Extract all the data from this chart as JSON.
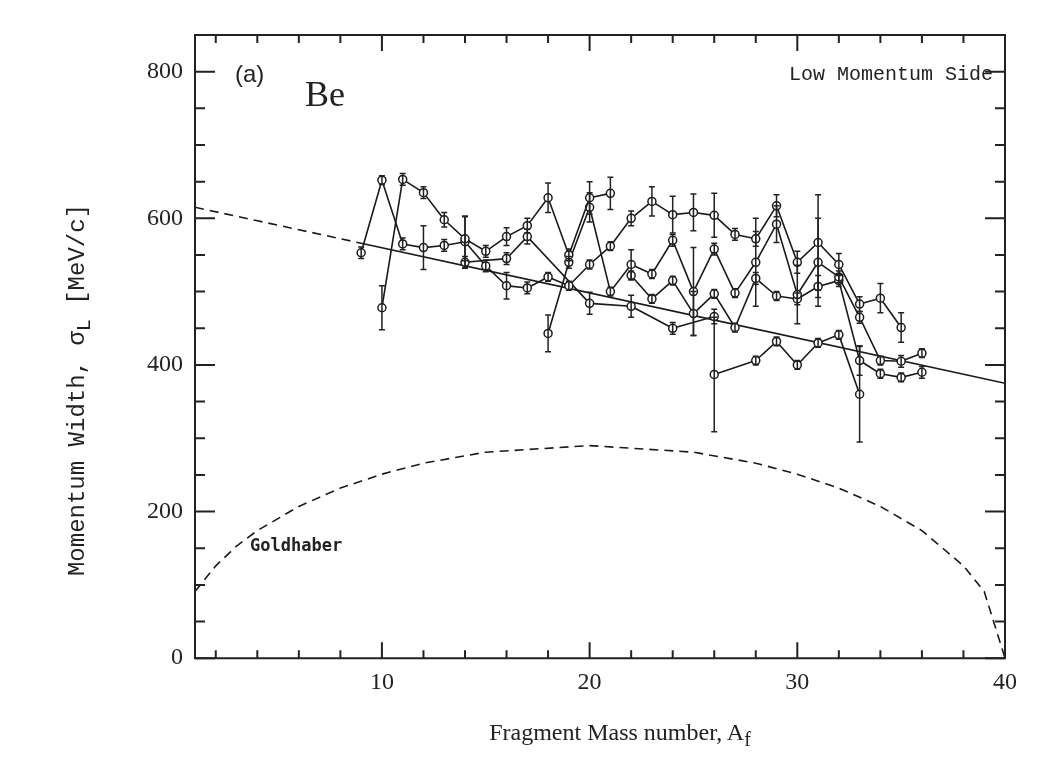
{
  "chart_data": {
    "type": "line",
    "xlabel": "Fragment Mass number, A$_{f}$",
    "ylabel": "Momentum Width, σ$_{L}$ [MeV/c]",
    "annotations": [
      "(a)",
      "Be",
      "Low Momentum Side",
      "Goldhaber"
    ],
    "xlim": [
      1,
      40
    ],
    "xticks": [
      {
        "value": 2,
        "label": null
      },
      {
        "value": 4,
        "label": null
      },
      {
        "value": 6,
        "label": null
      },
      {
        "value": 8,
        "label": null
      },
      10,
      {
        "value": 12,
        "label": null
      },
      {
        "value": 14,
        "label": null
      },
      {
        "value": 16,
        "label": null
      },
      {
        "value": 18,
        "label": null
      },
      20,
      {
        "value": 22,
        "label": null
      },
      {
        "value": 24,
        "label": null
      },
      {
        "value": 26,
        "label": null
      },
      {
        "value": 28,
        "label": null
      },
      30,
      {
        "value": 32,
        "label": null
      },
      {
        "value": 34,
        "label": null
      },
      {
        "value": 36,
        "label": null
      },
      {
        "value": 38,
        "label": null
      },
      40
    ],
    "ylim": [
      0,
      850
    ],
    "yticks": [
      0,
      {
        "value": 50,
        "label": null
      },
      {
        "value": 100,
        "label": null
      },
      {
        "value": 150,
        "label": null
      },
      200,
      {
        "value": 250,
        "label": null
      },
      {
        "value": 300,
        "label": null
      },
      {
        "value": 350,
        "label": null
      },
      400,
      {
        "value": 450,
        "label": null
      },
      {
        "value": 500,
        "label": null
      },
      {
        "value": 550,
        "label": null
      },
      600,
      {
        "value": 650,
        "label": null
      },
      {
        "value": 700,
        "label": null
      },
      {
        "value": 750,
        "label": null
      },
      800
    ],
    "grid": false,
    "legend": false,
    "marker": "circle",
    "series": [
      {
        "color": "#1a1a1a",
        "x": [
          10,
          11,
          12,
          13,
          14,
          15,
          16,
          17,
          18,
          19,
          20,
          21
        ],
        "values": [
          478,
          653,
          635,
          598,
          572,
          555,
          575,
          590,
          628,
          550,
          628,
          634
        ],
        "errors": [
          30,
          8,
          8,
          10,
          30,
          8,
          12,
          10,
          20,
          8,
          22,
          22
        ]
      },
      {
        "color": "#1a1a1a",
        "x": [
          9,
          10,
          11,
          12,
          13,
          14,
          15,
          16,
          17,
          18,
          19,
          20,
          21,
          22,
          23,
          24,
          25,
          26,
          27,
          28,
          29,
          30,
          31,
          32,
          33,
          34,
          35
        ],
        "values": [
          553,
          652,
          565,
          560,
          563,
          568,
          535,
          508,
          505,
          520,
          508,
          537,
          562,
          600,
          623,
          605,
          608,
          604,
          578,
          572,
          617,
          540,
          567,
          537,
          483,
          491,
          451
        ],
        "errors": [
          8,
          6,
          8,
          30,
          8,
          35,
          8,
          18,
          8,
          6,
          6,
          6,
          6,
          10,
          20,
          25,
          25,
          30,
          8,
          10,
          15,
          15,
          65,
          15,
          10,
          20,
          20
        ]
      },
      {
        "color": "#1a1a1a",
        "x": [
          18,
          19,
          20,
          21,
          22,
          23,
          24,
          25,
          26,
          27,
          28,
          29,
          30,
          31,
          32,
          33,
          34,
          35,
          36
        ],
        "values": [
          443,
          540,
          615,
          500,
          537,
          524,
          570,
          500,
          558,
          498,
          540,
          592,
          496,
          540,
          520,
          465,
          406,
          405,
          416
        ],
        "errors": [
          25,
          8,
          20,
          6,
          20,
          6,
          8,
          60,
          8,
          6,
          60,
          25,
          40,
          60,
          8,
          8,
          6,
          8,
          6
        ]
      },
      {
        "color": "#1a1a1a",
        "x": [
          22,
          23,
          24,
          25,
          26,
          27,
          28,
          29,
          30,
          31,
          32,
          33,
          34,
          35,
          36
        ],
        "values": [
          522,
          490,
          515,
          470,
          497,
          451,
          518,
          494,
          490,
          507,
          515,
          406,
          388,
          383,
          390
        ],
        "errors": [
          6,
          6,
          6,
          30,
          6,
          6,
          8,
          6,
          8,
          15,
          8,
          20,
          6,
          6,
          8
        ]
      },
      {
        "color": "#1a1a1a",
        "x": [
          26,
          28,
          29,
          30,
          31,
          32,
          33
        ],
        "values": [
          387,
          406,
          432,
          400,
          430,
          441,
          360
        ],
        "errors": [
          78,
          6,
          6,
          6,
          6,
          6,
          65
        ]
      },
      {
        "color": "#1a1a1a",
        "x": [
          14,
          16,
          17,
          20,
          22,
          24,
          26
        ],
        "values": [
          540,
          545,
          575,
          484,
          480,
          450,
          466
        ],
        "errors": [
          8,
          8,
          10,
          15,
          15,
          8,
          10
        ]
      },
      {
        "type": "line",
        "color": "#1a1a1a",
        "marker": "none",
        "line_style": "dashed",
        "x": [
          1,
          9
        ],
        "values": [
          615,
          566
        ]
      },
      {
        "type": "line",
        "color": "#1a1a1a",
        "marker": "none",
        "line_style": "solid",
        "x": [
          9,
          40
        ],
        "values": [
          566,
          375
        ]
      },
      {
        "type": "line",
        "color": "#1a1a1a",
        "marker": "none",
        "line_style": "dashed",
        "x": [
          1,
          2,
          3,
          4,
          6,
          8,
          10,
          12,
          15,
          20,
          25,
          28,
          30,
          32,
          34,
          36,
          38,
          39,
          40
        ],
        "values": [
          91,
          126,
          153,
          174,
          207,
          232,
          251,
          266,
          281,
          290,
          281,
          266,
          251,
          232,
          207,
          174,
          126,
          91,
          0
        ]
      }
    ]
  }
}
